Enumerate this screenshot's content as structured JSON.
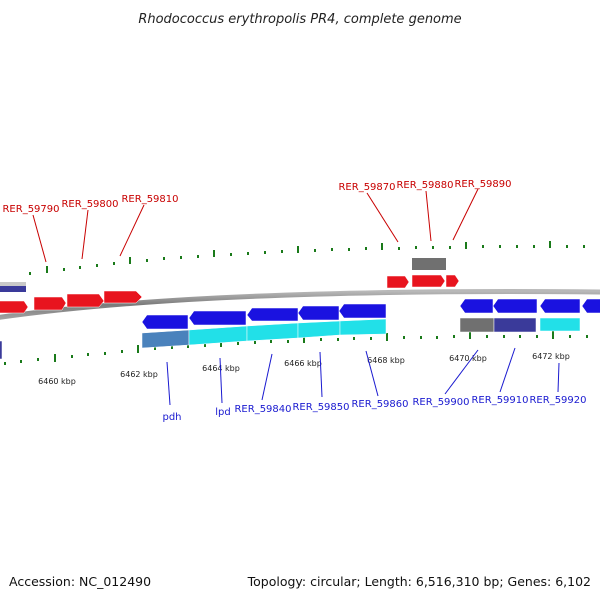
{
  "title": "Rhodococcus erythropolis PR4, complete genome",
  "footer": {
    "accession": "Accession: NC_012490",
    "summary": "Topology: circular; Length: 6,516,310 bp; Genes: 6,102"
  },
  "colors": {
    "forward_gene": "#e8141e",
    "reverse_gene": "#1a12e0",
    "cds_cyan": "#22e0e8",
    "cds_gray": "#707070",
    "cds_steel": "#4a82bc",
    "cds_navy": "#3a3a9a",
    "tick": "#1a7a1a",
    "backbone": "#8a8a8a",
    "label_forward": "#c80000",
    "label_reverse": "#1a1ad0"
  },
  "scale_labels": [
    "6460 kbp",
    "6462 kbp",
    "6464 kbp",
    "6466 kbp",
    "6468 kbp",
    "6470 kbp",
    "6472 kbp"
  ],
  "forward_labels": [
    "RER_59790",
    "RER_59800",
    "RER_59810",
    "RER_59870",
    "RER_59880",
    "RER_59890"
  ],
  "reverse_labels": [
    "pdh",
    "lpd",
    "RER_59840",
    "RER_59850",
    "RER_59860",
    "RER_59900",
    "RER_59910",
    "RER_59920"
  ]
}
